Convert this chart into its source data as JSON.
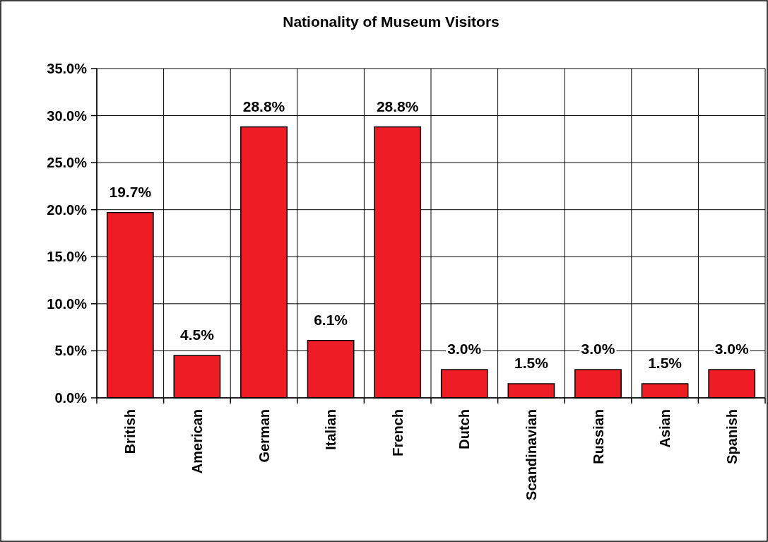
{
  "chart_data": {
    "type": "bar",
    "title": "Nationality of Museum Visitors",
    "categories": [
      "British",
      "American",
      "German",
      "Italian",
      "French",
      "Dutch",
      "Scandinavian",
      "Russian",
      "Asian",
      "Spanish"
    ],
    "values": [
      19.7,
      4.5,
      28.8,
      6.1,
      28.8,
      3.0,
      1.5,
      3.0,
      1.5,
      3.0
    ],
    "value_labels": [
      "19.7%",
      "4.5%",
      "28.8%",
      "6.1%",
      "28.8%",
      "3.0%",
      "1.5%",
      "3.0%",
      "1.5%",
      "3.0%"
    ],
    "color": "#ee1c25",
    "ylim": [
      0,
      35
    ],
    "yticks": [
      {
        "value": 0,
        "label": "0.0%"
      },
      {
        "value": 5,
        "label": "5.0%"
      },
      {
        "value": 10,
        "label": "10.0%"
      },
      {
        "value": 15,
        "label": "15.0%"
      },
      {
        "value": 20,
        "label": "20.0%"
      },
      {
        "value": 25,
        "label": "25.0%"
      },
      {
        "value": 30,
        "label": "30.0%"
      },
      {
        "value": 35,
        "label": "35.0%"
      }
    ],
    "grid": true
  }
}
